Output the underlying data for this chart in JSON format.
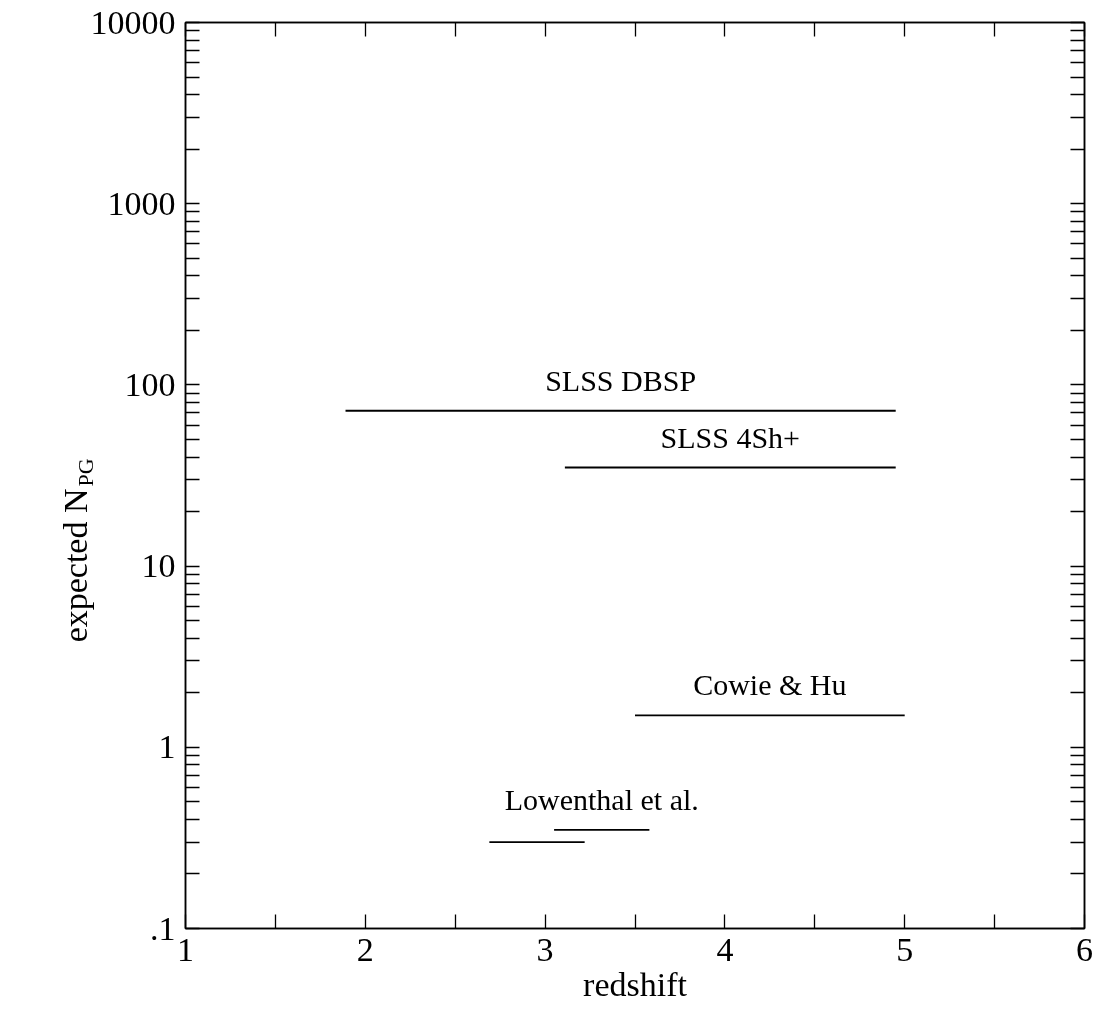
{
  "chart_data": {
    "type": "line",
    "xlabel": "redshift",
    "ylabel": "expected N$_{PG}$",
    "xlim": [
      1,
      6
    ],
    "ylim": [
      0.1,
      10000
    ],
    "log": "y",
    "grid": false,
    "marker": "none",
    "xticks": [
      1,
      {
        "value": 1.5,
        "label": null
      },
      2,
      {
        "value": 2.5,
        "label": null
      },
      3,
      {
        "value": 3.5,
        "label": null
      },
      4,
      {
        "value": 4.5,
        "label": null
      },
      5,
      {
        "value": 5.5,
        "label": null
      },
      6
    ],
    "yticks": [
      {
        "value": 0.1,
        "label": ".1"
      },
      {
        "value": 0.2,
        "label": null
      },
      {
        "value": 0.3,
        "label": null
      },
      {
        "value": 0.4,
        "label": null
      },
      {
        "value": 0.5,
        "label": null
      },
      {
        "value": 0.6,
        "label": null
      },
      {
        "value": 0.7,
        "label": null
      },
      {
        "value": 0.8,
        "label": null
      },
      {
        "value": 0.9,
        "label": null
      },
      1,
      {
        "value": 2,
        "label": null
      },
      {
        "value": 3,
        "label": null
      },
      {
        "value": 4,
        "label": null
      },
      {
        "value": 5,
        "label": null
      },
      {
        "value": 6,
        "label": null
      },
      {
        "value": 7,
        "label": null
      },
      {
        "value": 8,
        "label": null
      },
      {
        "value": 9,
        "label": null
      },
      10,
      {
        "value": 20,
        "label": null
      },
      {
        "value": 30,
        "label": null
      },
      {
        "value": 40,
        "label": null
      },
      {
        "value": 50,
        "label": null
      },
      {
        "value": 60,
        "label": null
      },
      {
        "value": 70,
        "label": null
      },
      {
        "value": 80,
        "label": null
      },
      {
        "value": 90,
        "label": null
      },
      100,
      {
        "value": 200,
        "label": null
      },
      {
        "value": 300,
        "label": null
      },
      {
        "value": 400,
        "label": null
      },
      {
        "value": 500,
        "label": null
      },
      {
        "value": 600,
        "label": null
      },
      {
        "value": 700,
        "label": null
      },
      {
        "value": 800,
        "label": null
      },
      {
        "value": 900,
        "label": null
      },
      1000,
      {
        "value": 2000,
        "label": null
      },
      {
        "value": 3000,
        "label": null
      },
      {
        "value": 4000,
        "label": null
      },
      {
        "value": 5000,
        "label": null
      },
      {
        "value": 6000,
        "label": null
      },
      {
        "value": 7000,
        "label": null
      },
      {
        "value": 8000,
        "label": null
      },
      {
        "value": 9000,
        "label": null
      },
      10000
    ],
    "series": [
      {
        "name": "SLSS DBSP",
        "color": "#000000",
        "x": [
          1.89,
          4.95
        ],
        "values": [
          72,
          72
        ]
      },
      {
        "name": "SLSS 4Sh+",
        "color": "#000000",
        "x": [
          3.11,
          4.95
        ],
        "values": [
          35,
          35
        ]
      },
      {
        "name": "Cowie & Hu",
        "color": "#000000",
        "x": [
          3.5,
          5.0
        ],
        "values": [
          1.5,
          1.5
        ]
      },
      {
        "color": "#000000",
        "x": [
          2.69,
          3.22
        ],
        "values": [
          0.3,
          0.3
        ]
      },
      {
        "name": "Lowenthal et al.",
        "color": "#000000",
        "x": [
          3.05,
          3.58
        ],
        "values": [
          0.35,
          0.35
        ]
      }
    ]
  }
}
